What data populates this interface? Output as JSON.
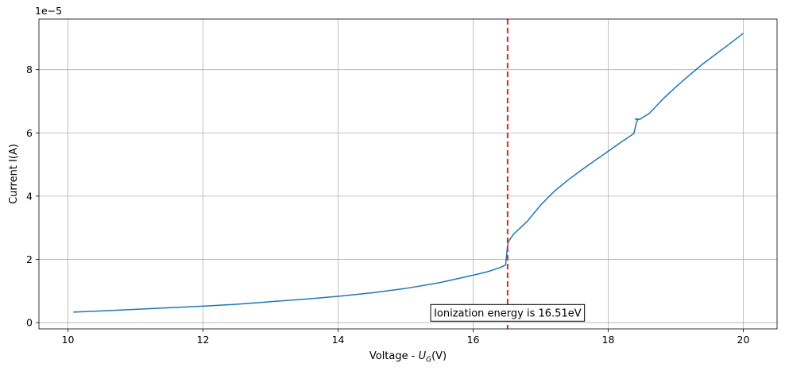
{
  "chart_data": {
    "type": "line",
    "xlabel_prefix": "Voltage - ",
    "xlabel_var": "U",
    "xlabel_sub": "G",
    "xlabel_unit": "(V)",
    "ylabel": "Current I(A)",
    "y_offset_text": "1e−5",
    "xlim": [
      9.57,
      20.5
    ],
    "ylim": [
      -0.2,
      9.6
    ],
    "xticks": [
      10,
      12,
      14,
      16,
      18,
      20
    ],
    "yticks": [
      0,
      2,
      4,
      6,
      8
    ],
    "grid": true,
    "series": [
      {
        "color": "#1f77b4",
        "x": [
          10.08,
          10.5,
          11.0,
          11.5,
          12.0,
          12.5,
          13.0,
          13.5,
          14.0,
          14.5,
          15.0,
          15.5,
          16.0,
          16.2,
          16.4,
          16.48,
          16.5,
          16.52,
          16.55,
          16.6,
          16.7,
          16.8,
          17.0,
          17.2,
          17.4,
          17.6,
          17.8,
          18.0,
          18.2,
          18.38,
          18.42,
          18.44,
          18.4,
          18.47,
          18.52,
          18.6,
          18.7,
          18.8,
          19.0,
          19.2,
          19.4,
          19.6,
          19.8,
          20.0
        ],
        "y": [
          0.33,
          0.37,
          0.42,
          0.47,
          0.52,
          0.58,
          0.66,
          0.74,
          0.83,
          0.94,
          1.08,
          1.26,
          1.5,
          1.6,
          1.74,
          1.82,
          2.25,
          2.55,
          2.65,
          2.8,
          3.0,
          3.2,
          3.72,
          4.15,
          4.5,
          4.82,
          5.12,
          5.42,
          5.72,
          5.98,
          6.35,
          6.42,
          6.44,
          6.43,
          6.5,
          6.6,
          6.82,
          7.05,
          7.45,
          7.82,
          8.18,
          8.5,
          8.82,
          9.15
        ]
      }
    ],
    "vline": {
      "x": 16.51,
      "color": "#d62728",
      "style": "dashed"
    },
    "annotation": {
      "text": "Ionization energy is 16.51eV",
      "x": 16.51,
      "y": 0.32
    }
  }
}
